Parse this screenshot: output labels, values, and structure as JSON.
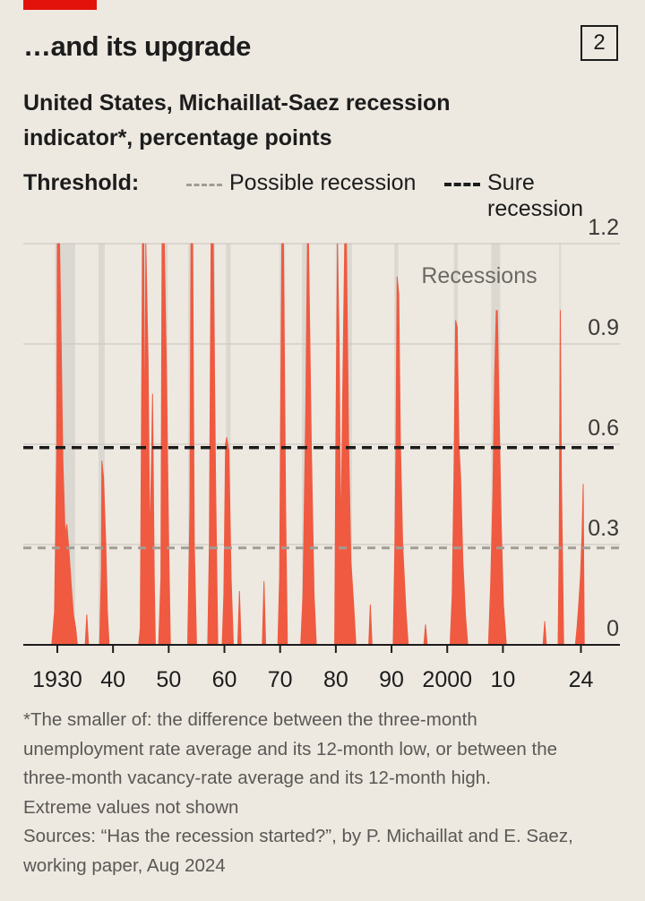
{
  "header": {
    "title": "…and its upgrade",
    "chart_number": "2",
    "subtitle_line1": "United States, Michaillat-Saez recession",
    "subtitle_line2": "indicator*, percentage points"
  },
  "legend": {
    "label": "Threshold:",
    "possible": "Possible recession",
    "sure": "Sure recession"
  },
  "footnotes": {
    "definition_line1": "*The smaller of: the difference between the three-month",
    "definition_line2": "unemployment rate average and its 12-month low, or between the",
    "definition_line3": "three-month vacancy-rate average and its 12-month high.",
    "extreme": "Extreme values not shown",
    "source_line1": "Sources: “Has the recession started?”, by P. Michaillat and E. Saez,",
    "source_line2": "working paper, Aug 2024"
  },
  "colors": {
    "series": "#ef5a41",
    "recession_band": "#d5d3cc",
    "grid": "#c7c4bd",
    "axis": "#1c1c1c",
    "sure_threshold": "#1c1c1c",
    "possible_threshold": "#a09d97"
  },
  "chart_data": {
    "type": "area",
    "title": "…and its upgrade",
    "subtitle": "United States, Michaillat-Saez recession indicator*, percentage points",
    "x_tick_labels": [
      "1930",
      "40",
      "50",
      "60",
      "70",
      "80",
      "90",
      "2000",
      "10",
      "24"
    ],
    "x_tick_years": [
      1930,
      1940,
      1950,
      1960,
      1970,
      1980,
      1990,
      2000,
      2010,
      2024
    ],
    "xlim": [
      1925.5,
      2031
    ],
    "ylim": [
      0,
      1.2
    ],
    "yticks": [
      0,
      0.3,
      0.6,
      0.9,
      1.2
    ],
    "ytick_labels": [
      "0",
      "0.3",
      "0.6",
      "0.9",
      "1.2"
    ],
    "recessions_label": "Recessions",
    "thresholds": [
      {
        "name": "Possible recession",
        "value": 0.29
      },
      {
        "name": "Sure recession",
        "value": 0.59
      }
    ],
    "recession_periods": [
      [
        1929.6,
        1933.2
      ],
      [
        1937.4,
        1938.5
      ],
      [
        1945.1,
        1945.8
      ],
      [
        1948.9,
        1949.8
      ],
      [
        1953.5,
        1954.4
      ],
      [
        1957.6,
        1958.3
      ],
      [
        1960.3,
        1961.1
      ],
      [
        1969.9,
        1970.9
      ],
      [
        1973.9,
        1975.2
      ],
      [
        1980.0,
        1980.5
      ],
      [
        1981.5,
        1982.9
      ],
      [
        1990.5,
        1991.2
      ],
      [
        2001.2,
        2001.9
      ],
      [
        2007.9,
        2009.5
      ],
      [
        2020.1,
        2020.4
      ]
    ],
    "series": [
      {
        "name": "Michaillat-Saez indicator",
        "x": [
          1929.0,
          1929.5,
          1929.9,
          1930.0,
          1930.4,
          1930.7,
          1931.0,
          1931.4,
          1931.7,
          1932.1,
          1932.5,
          1932.9,
          1933.3,
          1933.6,
          1935.0,
          1935.3,
          1935.6,
          1937.6,
          1937.9,
          1938.0,
          1938.3,
          1938.7,
          1939.0,
          1939.3,
          1944.6,
          1944.9,
          1945.3,
          1945.5,
          1945.7,
          1945.9,
          1946.3,
          1946.6,
          1946.9,
          1947.1,
          1947.4,
          1947.6,
          1948.2,
          1948.6,
          1948.8,
          1949.2,
          1949.6,
          1950.0,
          1950.3,
          1953.4,
          1953.8,
          1954.0,
          1954.3,
          1954.6,
          1955.0,
          1957.0,
          1957.3,
          1957.6,
          1958.0,
          1958.4,
          1958.8,
          1959.6,
          1959.9,
          1960.2,
          1960.4,
          1960.8,
          1961.2,
          1961.6,
          1962.4,
          1962.7,
          1963.0,
          1966.8,
          1967.1,
          1967.4,
          1969.6,
          1969.9,
          1970.3,
          1970.6,
          1971.0,
          1971.3,
          1973.7,
          1974.1,
          1974.6,
          1974.9,
          1975.1,
          1975.6,
          1976.1,
          1976.5,
          1979.8,
          1980.0,
          1980.3,
          1980.6,
          1980.9,
          1981.2,
          1981.6,
          1981.9,
          1982.3,
          1982.7,
          1983.2,
          1983.6,
          1985.9,
          1986.2,
          1986.5,
          1990.3,
          1990.6,
          1990.8,
          1991.0,
          1991.3,
          1991.6,
          1992.0,
          1992.6,
          1993.0,
          1995.8,
          1996.1,
          1996.4,
          2000.5,
          2000.9,
          2001.2,
          2001.5,
          2001.8,
          2002.1,
          2002.4,
          2002.8,
          2003.3,
          2003.7,
          2007.4,
          2007.8,
          2008.2,
          2008.5,
          2008.8,
          2009.0,
          2009.3,
          2009.7,
          2010.1,
          2010.6,
          2017.2,
          2017.5,
          2017.8,
          2019.9,
          2020.1,
          2020.3,
          2020.5,
          2020.9,
          2023.0,
          2023.3,
          2023.6,
          2023.9,
          2024.2,
          2024.4,
          2024.6
        ],
        "y": [
          0,
          0.1,
          0.6,
          1.25,
          1.25,
          0.9,
          0.55,
          0.33,
          0.36,
          0.28,
          0.18,
          0.09,
          0.05,
          0,
          0,
          0.09,
          0,
          0,
          0.22,
          0.55,
          0.5,
          0.3,
          0.1,
          0,
          0,
          0.05,
          1.25,
          1.25,
          0.5,
          1.25,
          0.85,
          0.3,
          0.55,
          0.75,
          0.2,
          0,
          0,
          0.2,
          1.25,
          1.25,
          0.8,
          0.3,
          0,
          0,
          0.4,
          1.25,
          1.25,
          0.3,
          0,
          0,
          0.3,
          1.25,
          1.25,
          0.5,
          0,
          0,
          0.15,
          0.6,
          0.62,
          0.58,
          0.2,
          0,
          0,
          0.16,
          0,
          0,
          0.19,
          0,
          0,
          0.2,
          1.25,
          1.25,
          0.4,
          0,
          0,
          0.15,
          0.7,
          1.25,
          1.25,
          0.6,
          0.15,
          0,
          0,
          0.6,
          1.25,
          0.9,
          0.3,
          0.7,
          1.25,
          1.25,
          0.6,
          0.25,
          0.12,
          0,
          0,
          0.12,
          0,
          0,
          0.3,
          0.6,
          1.1,
          1.05,
          0.6,
          0.3,
          0.1,
          0,
          0,
          0.06,
          0,
          0,
          0.15,
          0.5,
          0.97,
          0.95,
          0.6,
          0.5,
          0.25,
          0.08,
          0,
          0,
          0.18,
          0.45,
          0.8,
          1.0,
          1.0,
          0.7,
          0.35,
          0.12,
          0,
          0,
          0.07,
          0,
          0,
          0.3,
          1.0,
          0.5,
          0,
          0,
          0.05,
          0.12,
          0.2,
          0.33,
          0.48,
          0
        ]
      }
    ],
    "note": "Extreme values not shown"
  }
}
